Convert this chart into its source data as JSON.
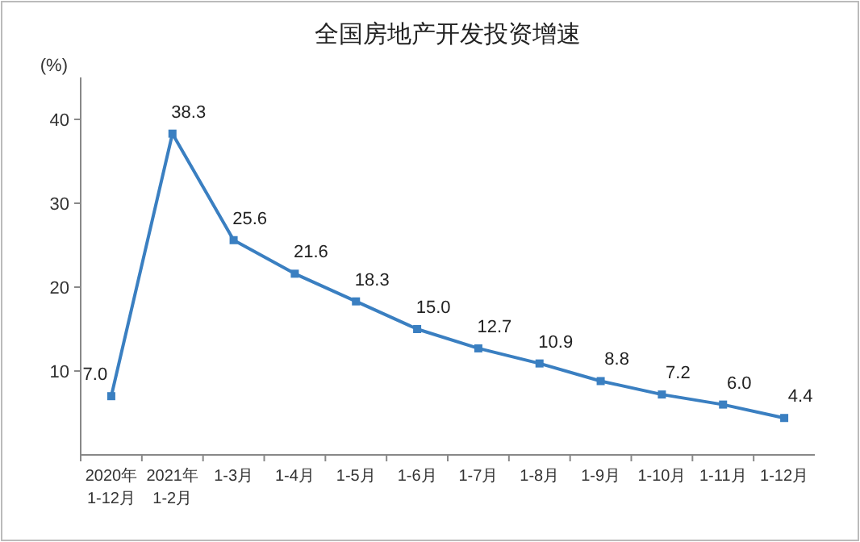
{
  "chart_data": {
    "type": "line",
    "title": "全国房地产开发投资增速",
    "ylabel": "(%)",
    "categories": [
      "2020年\n1-12月",
      "2021年\n1-2月",
      "1-3月",
      "1-4月",
      "1-5月",
      "1-6月",
      "1-7月",
      "1-8月",
      "1-9月",
      "1-10月",
      "1-11月",
      "1-12月"
    ],
    "series": [
      {
        "color": "#3a7fc1",
        "values": [
          7.0,
          38.3,
          25.6,
          21.6,
          18.3,
          15.0,
          12.7,
          10.9,
          8.8,
          7.2,
          6.0,
          4.4
        ]
      }
    ],
    "ylim": [
      0,
      45
    ],
    "yticks": [
      10,
      20,
      30,
      40
    ],
    "value_labels": [
      "7.0",
      "38.3",
      "25.6",
      "21.6",
      "18.3",
      "15.0",
      "12.7",
      "10.9",
      "8.8",
      "7.2",
      "6.0",
      "4.4"
    ],
    "marker": "square",
    "line_style": "solid",
    "grid": false
  }
}
